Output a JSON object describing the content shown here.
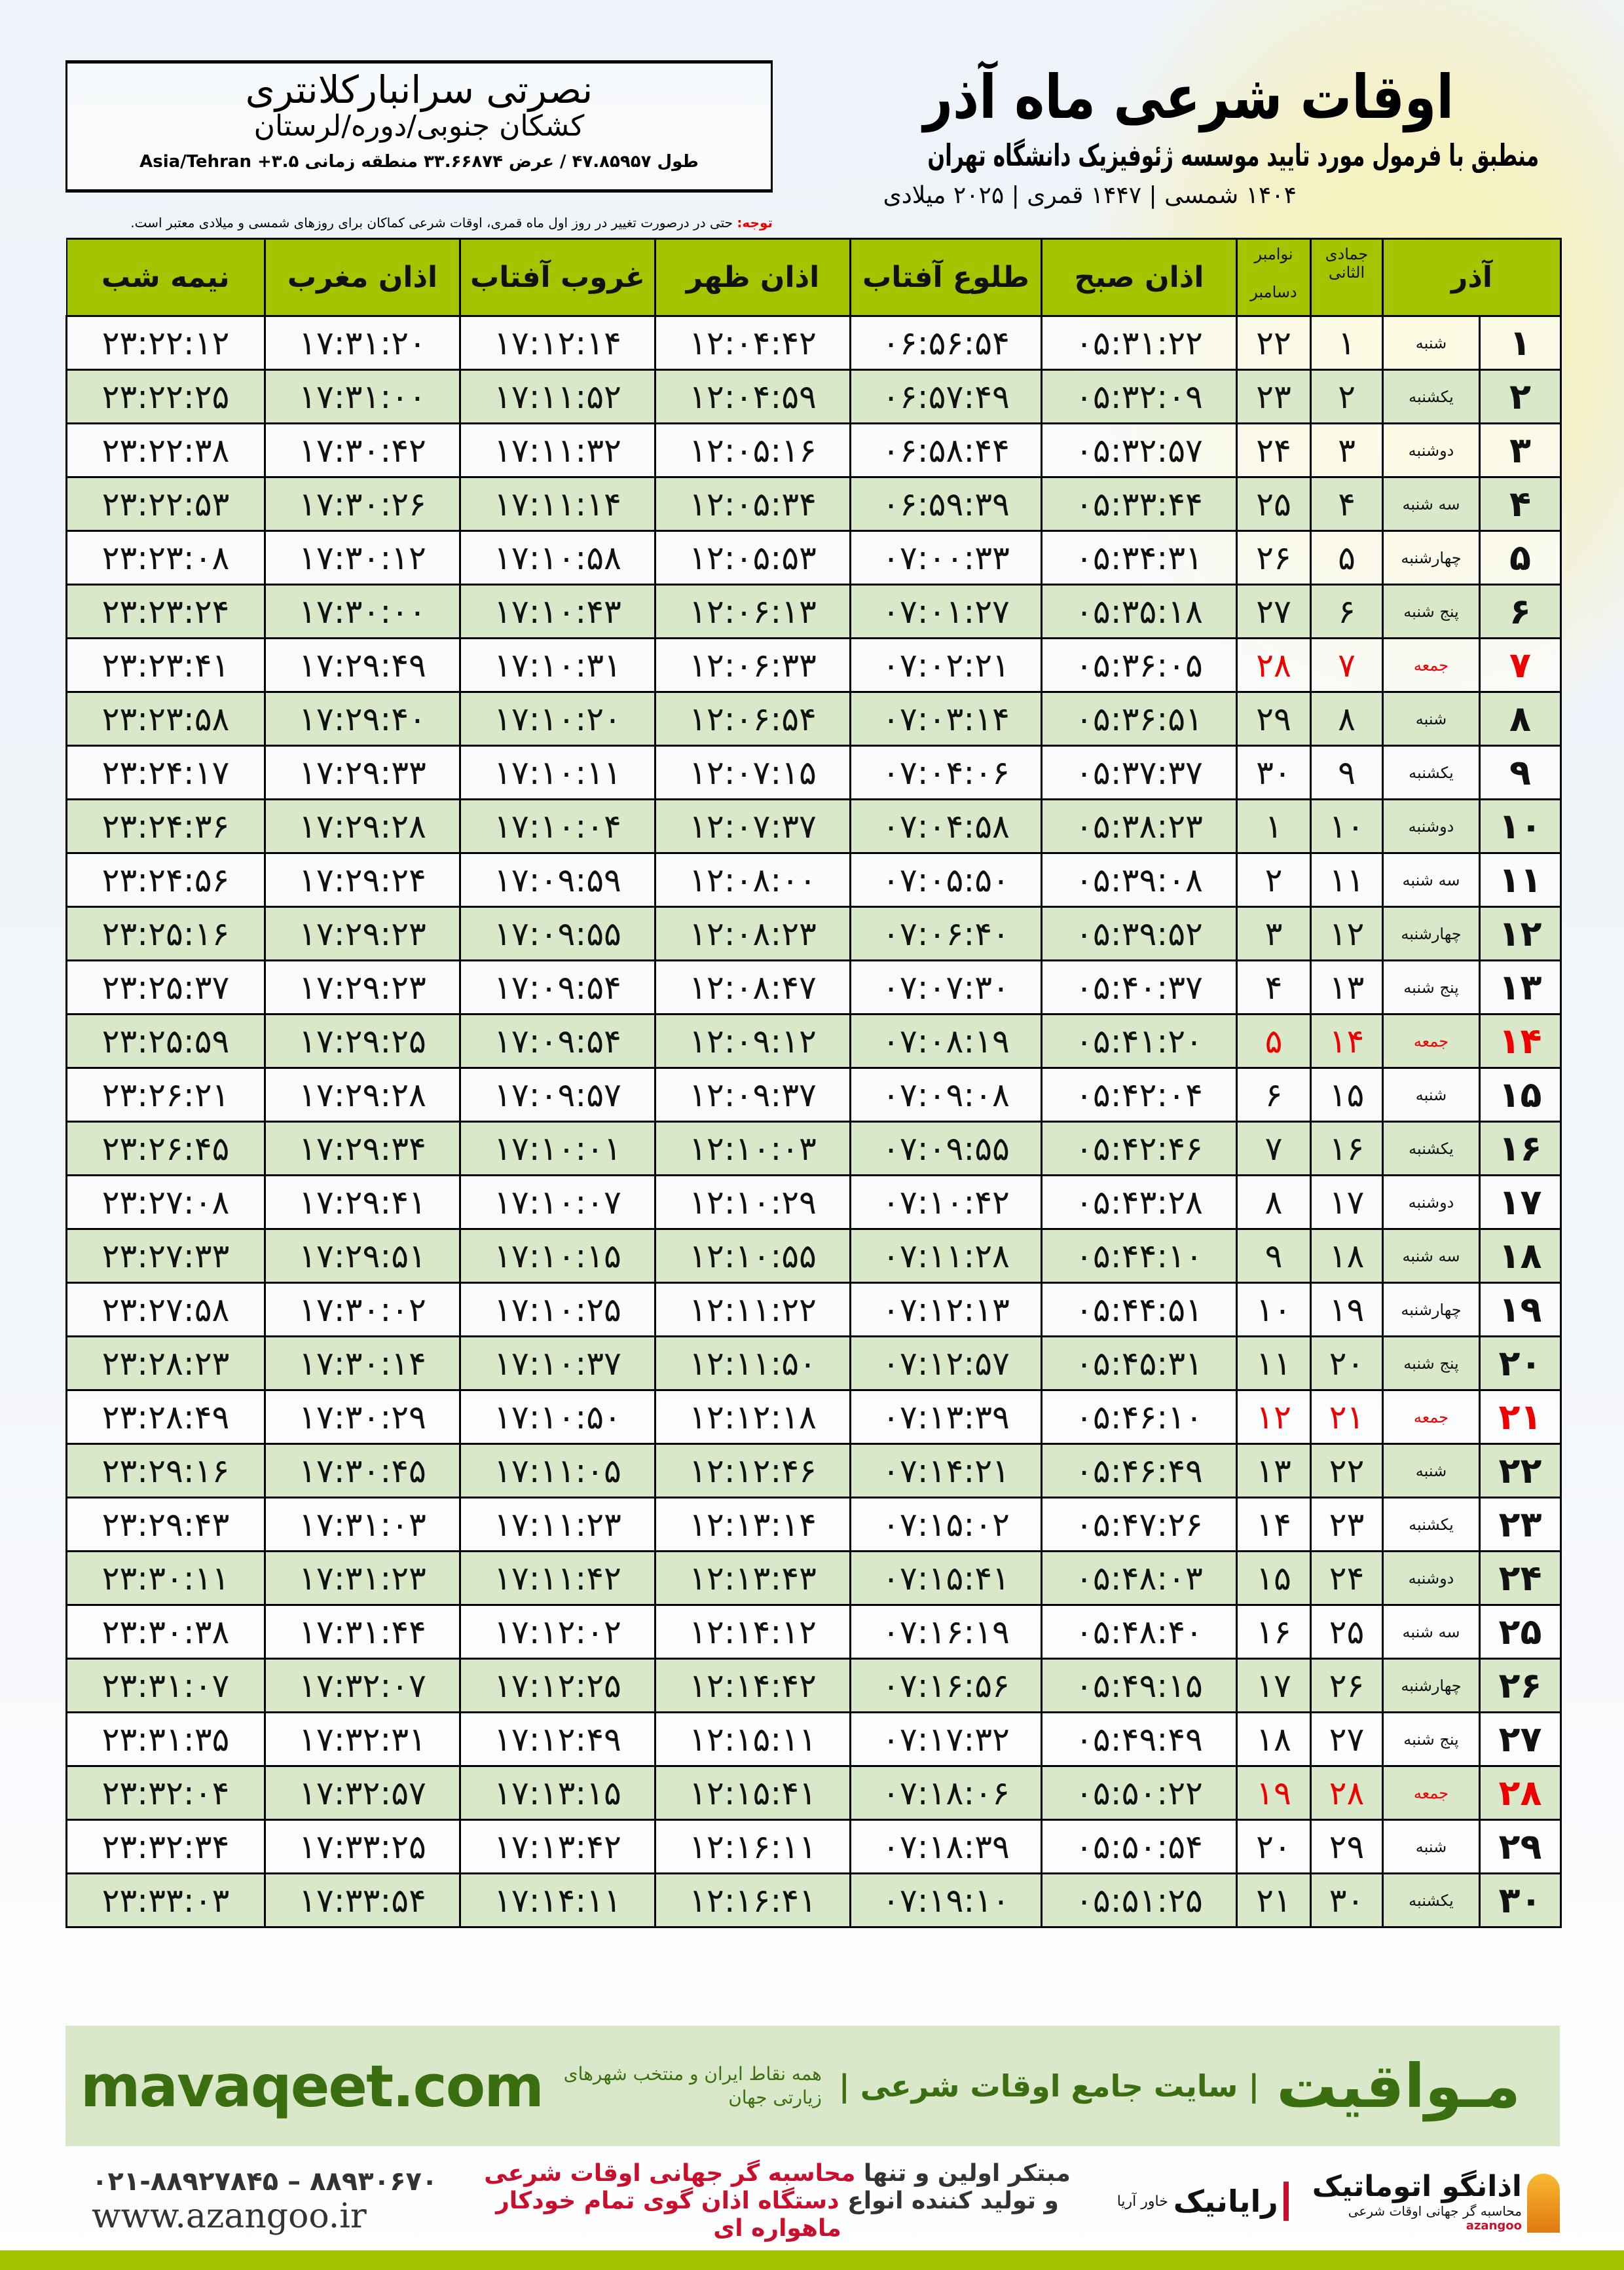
{
  "header": {
    "title": "اوقات شرعی ماه آذر",
    "subtitle": "منطبق با فرمول مورد تایید موسسه ژئوفیزیک دانشگاه تهران",
    "dates": "۱۴۰۴ شمسی | ۱۴۴۷ قمری | ۲۰۲۵ میلادی"
  },
  "location": {
    "name": "نصرتی سرانبارکلانتری",
    "region": "کشکان جنوبی/دوره/لرستان",
    "coords": "طول ۴۷.۸۵۹۵۷ / عرض ۳۳.۶۶۸۷۴ منطقه زمانی ۳.۵+ Asia/Tehran"
  },
  "note": {
    "label": "توجه:",
    "text": " حتی در درصورت تغییر در روز اول ماه قمری، اوقات شرعی کماکان برای روزهای شمسی و میلادی معتبر است."
  },
  "table": {
    "headers": {
      "azar": "آذر",
      "hijri": "جمادی الثانی",
      "greg_top": "نوامبر",
      "greg_bottom": "دسامبر",
      "fajr": "اذان صبح",
      "sunrise": "طلوع آفتاب",
      "dhuhr": "اذان ظهر",
      "sunset": "غروب آفتاب",
      "maghrib": "اذان مغرب",
      "midnight": "نیمه شب"
    },
    "holiday_color": "#e00000",
    "header_color": "#a5c400",
    "row_alt_color": "#d9e8c8",
    "rows": [
      [
        "۱",
        "شنبه",
        "۱",
        "۲۲",
        "۰۵:۳۱:۲۲",
        "۰۶:۵۶:۵۴",
        "۱۲:۰۴:۴۲",
        "۱۷:۱۲:۱۴",
        "۱۷:۳۱:۲۰",
        "۲۳:۲۲:۱۲"
      ],
      [
        "۲",
        "یکشنبه",
        "۲",
        "۲۳",
        "۰۵:۳۲:۰۹",
        "۰۶:۵۷:۴۹",
        "۱۲:۰۴:۵۹",
        "۱۷:۱۱:۵۲",
        "۱۷:۳۱:۰۰",
        "۲۳:۲۲:۲۵"
      ],
      [
        "۳",
        "دوشنبه",
        "۳",
        "۲۴",
        "۰۵:۳۲:۵۷",
        "۰۶:۵۸:۴۴",
        "۱۲:۰۵:۱۶",
        "۱۷:۱۱:۳۲",
        "۱۷:۳۰:۴۲",
        "۲۳:۲۲:۳۸"
      ],
      [
        "۴",
        "سه شنبه",
        "۴",
        "۲۵",
        "۰۵:۳۳:۴۴",
        "۰۶:۵۹:۳۹",
        "۱۲:۰۵:۳۴",
        "۱۷:۱۱:۱۴",
        "۱۷:۳۰:۲۶",
        "۲۳:۲۲:۵۳"
      ],
      [
        "۵",
        "چهارشنبه",
        "۵",
        "۲۶",
        "۰۵:۳۴:۳۱",
        "۰۷:۰۰:۳۳",
        "۱۲:۰۵:۵۳",
        "۱۷:۱۰:۵۸",
        "۱۷:۳۰:۱۲",
        "۲۳:۲۳:۰۸"
      ],
      [
        "۶",
        "پنج شنبه",
        "۶",
        "۲۷",
        "۰۵:۳۵:۱۸",
        "۰۷:۰۱:۲۷",
        "۱۲:۰۶:۱۳",
        "۱۷:۱۰:۴۳",
        "۱۷:۳۰:۰۰",
        "۲۳:۲۳:۲۴"
      ],
      [
        "۷",
        "جمعه",
        "۷",
        "۲۸",
        "۰۵:۳۶:۰۵",
        "۰۷:۰۲:۲۱",
        "۱۲:۰۶:۳۳",
        "۱۷:۱۰:۳۱",
        "۱۷:۲۹:۴۹",
        "۲۳:۲۳:۴۱"
      ],
      [
        "۸",
        "شنبه",
        "۸",
        "۲۹",
        "۰۵:۳۶:۵۱",
        "۰۷:۰۳:۱۴",
        "۱۲:۰۶:۵۴",
        "۱۷:۱۰:۲۰",
        "۱۷:۲۹:۴۰",
        "۲۳:۲۳:۵۸"
      ],
      [
        "۹",
        "یکشنبه",
        "۹",
        "۳۰",
        "۰۵:۳۷:۳۷",
        "۰۷:۰۴:۰۶",
        "۱۲:۰۷:۱۵",
        "۱۷:۱۰:۱۱",
        "۱۷:۲۹:۳۳",
        "۲۳:۲۴:۱۷"
      ],
      [
        "۱۰",
        "دوشنبه",
        "۱۰",
        "۱",
        "۰۵:۳۸:۲۳",
        "۰۷:۰۴:۵۸",
        "۱۲:۰۷:۳۷",
        "۱۷:۱۰:۰۴",
        "۱۷:۲۹:۲۸",
        "۲۳:۲۴:۳۶"
      ],
      [
        "۱۱",
        "سه شنبه",
        "۱۱",
        "۲",
        "۰۵:۳۹:۰۸",
        "۰۷:۰۵:۵۰",
        "۱۲:۰۸:۰۰",
        "۱۷:۰۹:۵۹",
        "۱۷:۲۹:۲۴",
        "۲۳:۲۴:۵۶"
      ],
      [
        "۱۲",
        "چهارشنبه",
        "۱۲",
        "۳",
        "۰۵:۳۹:۵۲",
        "۰۷:۰۶:۴۰",
        "۱۲:۰۸:۲۳",
        "۱۷:۰۹:۵۵",
        "۱۷:۲۹:۲۳",
        "۲۳:۲۵:۱۶"
      ],
      [
        "۱۳",
        "پنج شنبه",
        "۱۳",
        "۴",
        "۰۵:۴۰:۳۷",
        "۰۷:۰۷:۳۰",
        "۱۲:۰۸:۴۷",
        "۱۷:۰۹:۵۴",
        "۱۷:۲۹:۲۳",
        "۲۳:۲۵:۳۷"
      ],
      [
        "۱۴",
        "جمعه",
        "۱۴",
        "۵",
        "۰۵:۴۱:۲۰",
        "۰۷:۰۸:۱۹",
        "۱۲:۰۹:۱۲",
        "۱۷:۰۹:۵۴",
        "۱۷:۲۹:۲۵",
        "۲۳:۲۵:۵۹"
      ],
      [
        "۱۵",
        "شنبه",
        "۱۵",
        "۶",
        "۰۵:۴۲:۰۴",
        "۰۷:۰۹:۰۸",
        "۱۲:۰۹:۳۷",
        "۱۷:۰۹:۵۷",
        "۱۷:۲۹:۲۸",
        "۲۳:۲۶:۲۱"
      ],
      [
        "۱۶",
        "یکشنبه",
        "۱۶",
        "۷",
        "۰۵:۴۲:۴۶",
        "۰۷:۰۹:۵۵",
        "۱۲:۱۰:۰۳",
        "۱۷:۱۰:۰۱",
        "۱۷:۲۹:۳۴",
        "۲۳:۲۶:۴۵"
      ],
      [
        "۱۷",
        "دوشنبه",
        "۱۷",
        "۸",
        "۰۵:۴۳:۲۸",
        "۰۷:۱۰:۴۲",
        "۱۲:۱۰:۲۹",
        "۱۷:۱۰:۰۷",
        "۱۷:۲۹:۴۱",
        "۲۳:۲۷:۰۸"
      ],
      [
        "۱۸",
        "سه شنبه",
        "۱۸",
        "۹",
        "۰۵:۴۴:۱۰",
        "۰۷:۱۱:۲۸",
        "۱۲:۱۰:۵۵",
        "۱۷:۱۰:۱۵",
        "۱۷:۲۹:۵۱",
        "۲۳:۲۷:۳۳"
      ],
      [
        "۱۹",
        "چهارشنبه",
        "۱۹",
        "۱۰",
        "۰۵:۴۴:۵۱",
        "۰۷:۱۲:۱۳",
        "۱۲:۱۱:۲۲",
        "۱۷:۱۰:۲۵",
        "۱۷:۳۰:۰۲",
        "۲۳:۲۷:۵۸"
      ],
      [
        "۲۰",
        "پنج شنبه",
        "۲۰",
        "۱۱",
        "۰۵:۴۵:۳۱",
        "۰۷:۱۲:۵۷",
        "۱۲:۱۱:۵۰",
        "۱۷:۱۰:۳۷",
        "۱۷:۳۰:۱۴",
        "۲۳:۲۸:۲۳"
      ],
      [
        "۲۱",
        "جمعه",
        "۲۱",
        "۱۲",
        "۰۵:۴۶:۱۰",
        "۰۷:۱۳:۳۹",
        "۱۲:۱۲:۱۸",
        "۱۷:۱۰:۵۰",
        "۱۷:۳۰:۲۹",
        "۲۳:۲۸:۴۹"
      ],
      [
        "۲۲",
        "شنبه",
        "۲۲",
        "۱۳",
        "۰۵:۴۶:۴۹",
        "۰۷:۱۴:۲۱",
        "۱۲:۱۲:۴۶",
        "۱۷:۱۱:۰۵",
        "۱۷:۳۰:۴۵",
        "۲۳:۲۹:۱۶"
      ],
      [
        "۲۳",
        "یکشنبه",
        "۲۳",
        "۱۴",
        "۰۵:۴۷:۲۶",
        "۰۷:۱۵:۰۲",
        "۱۲:۱۳:۱۴",
        "۱۷:۱۱:۲۳",
        "۱۷:۳۱:۰۳",
        "۲۳:۲۹:۴۳"
      ],
      [
        "۲۴",
        "دوشنبه",
        "۲۴",
        "۱۵",
        "۰۵:۴۸:۰۳",
        "۰۷:۱۵:۴۱",
        "۱۲:۱۳:۴۳",
        "۱۷:۱۱:۴۲",
        "۱۷:۳۱:۲۳",
        "۲۳:۳۰:۱۱"
      ],
      [
        "۲۵",
        "سه شنبه",
        "۲۵",
        "۱۶",
        "۰۵:۴۸:۴۰",
        "۰۷:۱۶:۱۹",
        "۱۲:۱۴:۱۲",
        "۱۷:۱۲:۰۲",
        "۱۷:۳۱:۴۴",
        "۲۳:۳۰:۳۸"
      ],
      [
        "۲۶",
        "چهارشنبه",
        "۲۶",
        "۱۷",
        "۰۵:۴۹:۱۵",
        "۰۷:۱۶:۵۶",
        "۱۲:۱۴:۴۲",
        "۱۷:۱۲:۲۵",
        "۱۷:۳۲:۰۷",
        "۲۳:۳۱:۰۷"
      ],
      [
        "۲۷",
        "پنج شنبه",
        "۲۷",
        "۱۸",
        "۰۵:۴۹:۴۹",
        "۰۷:۱۷:۳۲",
        "۱۲:۱۵:۱۱",
        "۱۷:۱۲:۴۹",
        "۱۷:۳۲:۳۱",
        "۲۳:۳۱:۳۵"
      ],
      [
        "۲۸",
        "جمعه",
        "۲۸",
        "۱۹",
        "۰۵:۵۰:۲۲",
        "۰۷:۱۸:۰۶",
        "۱۲:۱۵:۴۱",
        "۱۷:۱۳:۱۵",
        "۱۷:۳۲:۵۷",
        "۲۳:۳۲:۰۴"
      ],
      [
        "۲۹",
        "شنبه",
        "۲۹",
        "۲۰",
        "۰۵:۵۰:۵۴",
        "۰۷:۱۸:۳۹",
        "۱۲:۱۶:۱۱",
        "۱۷:۱۳:۴۲",
        "۱۷:۳۳:۲۵",
        "۲۳:۳۲:۳۴"
      ],
      [
        "۳۰",
        "یکشنبه",
        "۳۰",
        "۲۱",
        "۰۵:۵۱:۲۵",
        "۰۷:۱۹:۱۰",
        "۱۲:۱۶:۴۱",
        "۱۷:۱۴:۱۱",
        "۱۷:۳۳:۵۴",
        "۲۳:۳۳:۰۳"
      ]
    ]
  },
  "footer": {
    "brand": "مـواقیت",
    "tagline": "| سایت جامع اوقات شرعی |",
    "tagline2": "همه نقاط ایران و منتخب شهرهای زیارتی جهان",
    "site": "mavaqeet.com",
    "phones": "۰۲۱-۸۸۹۲۷۸۴۵ – ۸۸۹۳۰۶۷۰",
    "web": "www.azangoo.ir",
    "promo1a": "مبتکر اولین و تنها ",
    "promo1b": "محاسبه گر جهانی اوقات شرعی",
    "promo2a": "و تولید کننده انواع ",
    "promo2b": "دستگاه اذان گوی تمام خودکار ماهواره ای",
    "logo1": "رایانیک",
    "logo1_sub": "خاور آریا",
    "logo2": "اذانگو اتوماتیک",
    "logo2_sub": "محاسبه گر جهانی اوقات شرعی",
    "logo2_latin": "azangoo",
    "accent": "#c8102e"
  }
}
